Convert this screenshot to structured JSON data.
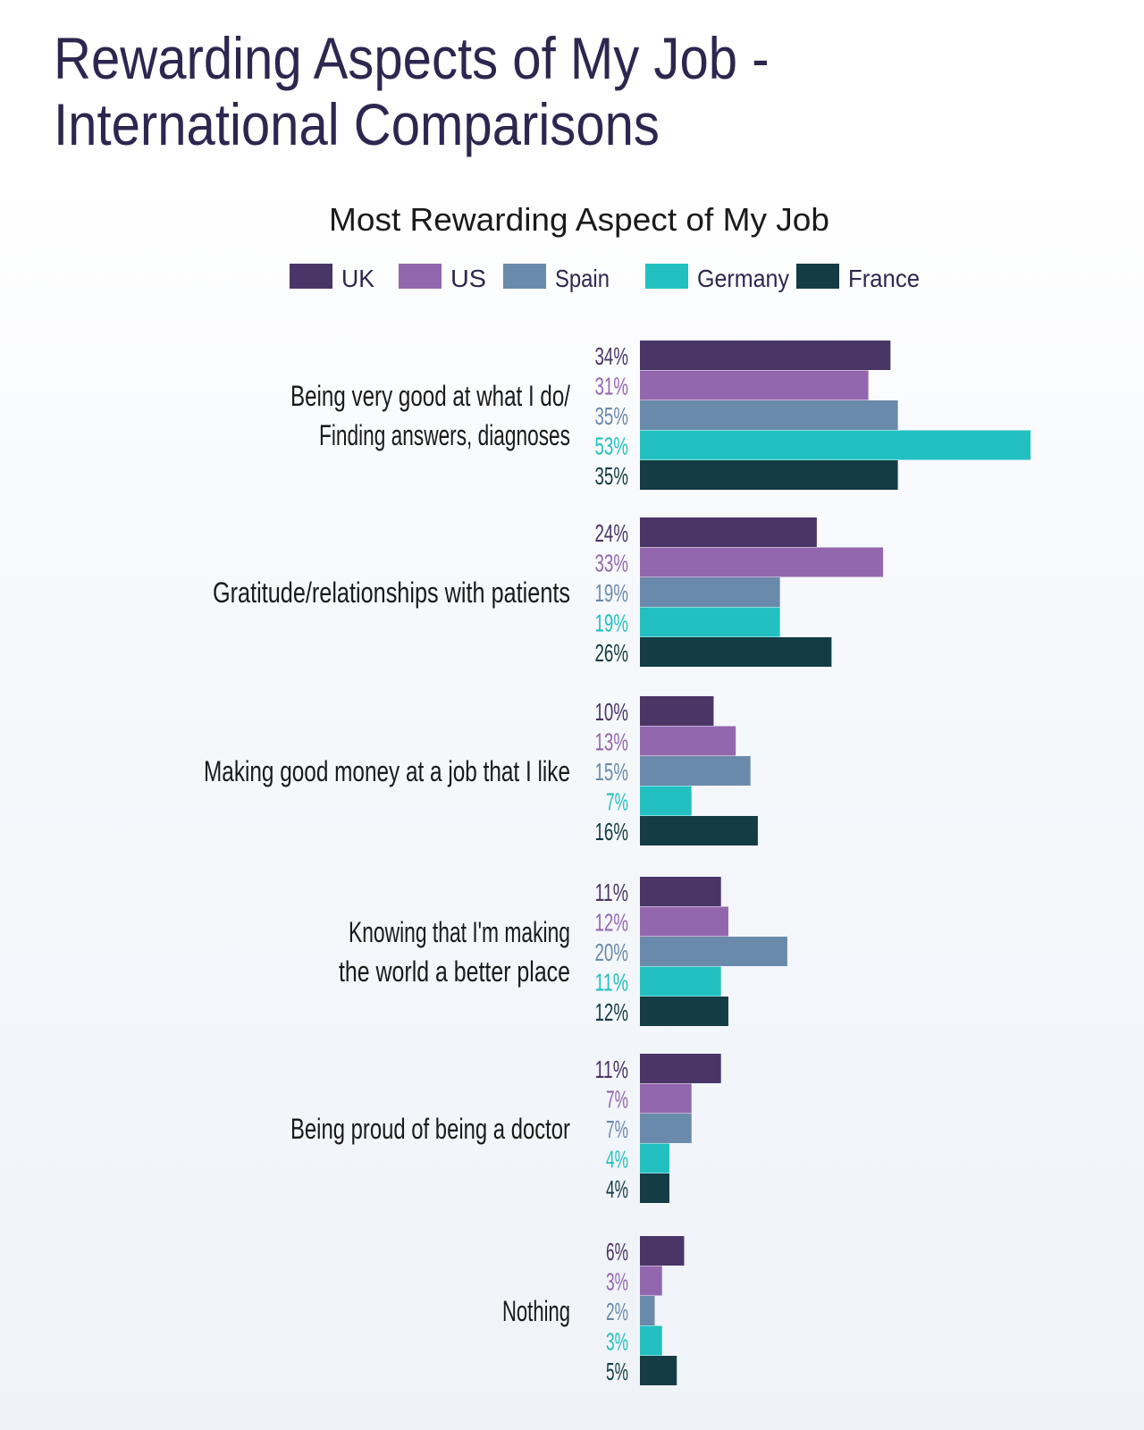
{
  "page": {
    "title_line1": "Rewarding Aspects of My Job -",
    "title_line2": "International Comparisons"
  },
  "colors": {
    "UK": "#4a3567",
    "US": "#9367ae",
    "Spain": "#6a8aab",
    "Germany": "#22c0c1",
    "France": "#133c45",
    "title": "#2d2750",
    "label": "#1a1a1a"
  },
  "chart_data": {
    "type": "bar",
    "orientation": "horizontal",
    "title": "Most Rewarding Aspect of My Job",
    "legend_position": "top-center",
    "value_suffix": "%",
    "xlim": [
      0,
      55
    ],
    "grid": false,
    "categories": [
      "Being very good at what I do/\nFinding answers, diagnoses",
      "Gratitude/relationships with patients",
      "Making good money at a job that I like",
      "Knowing that I'm making\nthe world a better place",
      "Being proud of being a doctor",
      "Nothing"
    ],
    "series": [
      {
        "name": "UK",
        "values": [
          34,
          24,
          10,
          11,
          11,
          6
        ]
      },
      {
        "name": "US",
        "values": [
          31,
          33,
          13,
          12,
          7,
          3
        ]
      },
      {
        "name": "Spain",
        "values": [
          35,
          19,
          15,
          20,
          7,
          2
        ]
      },
      {
        "name": "Germany",
        "values": [
          53,
          19,
          7,
          11,
          4,
          3
        ]
      },
      {
        "name": "France",
        "values": [
          35,
          26,
          16,
          12,
          4,
          5
        ]
      }
    ]
  }
}
